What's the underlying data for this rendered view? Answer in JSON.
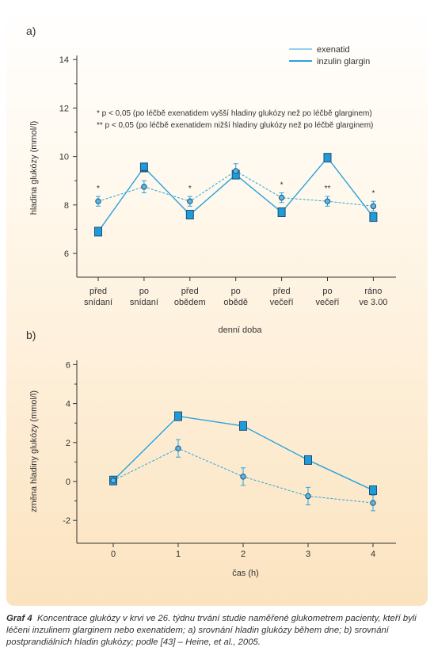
{
  "chart_data": [
    {
      "panel_label": "a)",
      "type": "line",
      "categories": [
        [
          "před",
          "snídaní"
        ],
        [
          "po",
          "snídaní"
        ],
        [
          "před",
          "obědem"
        ],
        [
          "po",
          "obědě"
        ],
        [
          "před",
          "večeří"
        ],
        [
          "po",
          "večeří"
        ],
        [
          "ráno",
          "ve 3.00"
        ]
      ],
      "xlabel": "denní doba",
      "ylabel": "hladina glukózy (mmol/l)",
      "ylim": [
        5,
        14
      ],
      "yticks": [
        6,
        8,
        10,
        12,
        14
      ],
      "series": [
        {
          "name": "exenatid",
          "style": "dashed",
          "marker": "circle",
          "values": [
            8.15,
            8.75,
            8.15,
            9.4,
            8.3,
            8.15,
            7.95
          ],
          "err": [
            0.2,
            0.25,
            0.2,
            0.3,
            0.2,
            0.2,
            0.2
          ]
        },
        {
          "name": "inzulin glargin",
          "style": "solid",
          "marker": "square",
          "values": [
            6.9,
            9.55,
            7.6,
            9.25,
            7.7,
            9.95,
            7.5
          ]
        }
      ],
      "significance": [
        "*",
        "**",
        "*",
        "",
        "*",
        "**",
        "*"
      ],
      "annotations": [
        "*  p < 0,05 (po léčbě exenatidem vyšší hladiny glukózy než po léčbě glarginem)",
        "** p < 0,05 (po léčbě exenatidem nižší hladiny glukózy než po léčbě glarginem)"
      ],
      "legend_position": "top-right"
    },
    {
      "panel_label": "b)",
      "type": "line",
      "x": [
        0,
        1,
        2,
        3,
        4
      ],
      "xlabel": "čas (h)",
      "ylabel": "změna hladiny glukózy (mmol/l)",
      "ylim": [
        -3,
        6
      ],
      "yticks": [
        -2,
        0,
        2,
        4,
        6
      ],
      "series": [
        {
          "name": "exenatid",
          "style": "dashed",
          "marker": "circle",
          "values": [
            0.05,
            1.7,
            0.25,
            -0.75,
            -1.1
          ],
          "err": [
            0.2,
            0.45,
            0.45,
            0.45,
            0.4
          ]
        },
        {
          "name": "inzulin glargin",
          "style": "solid",
          "marker": "square",
          "values": [
            0.05,
            3.35,
            2.85,
            1.1,
            -0.45
          ]
        }
      ]
    }
  ],
  "caption": {
    "label": "Graf 4",
    "text": "Koncentrace glukózy v krvi ve 26. týdnu trvání studie naměřené glukometrem pacienty, kteří byli léčeni inzulinem glarginem nebo exenatidem; a) srovnání hladin glukózy během dne; b) srovnání postprandiálních hladin glukózy; podle [43] – Heine, et al., 2005."
  },
  "colors": {
    "line": "#29a3dc",
    "marker_fill": "#1f9bd7",
    "marker_stroke": "#1b4f7a",
    "axis": "#333333"
  }
}
